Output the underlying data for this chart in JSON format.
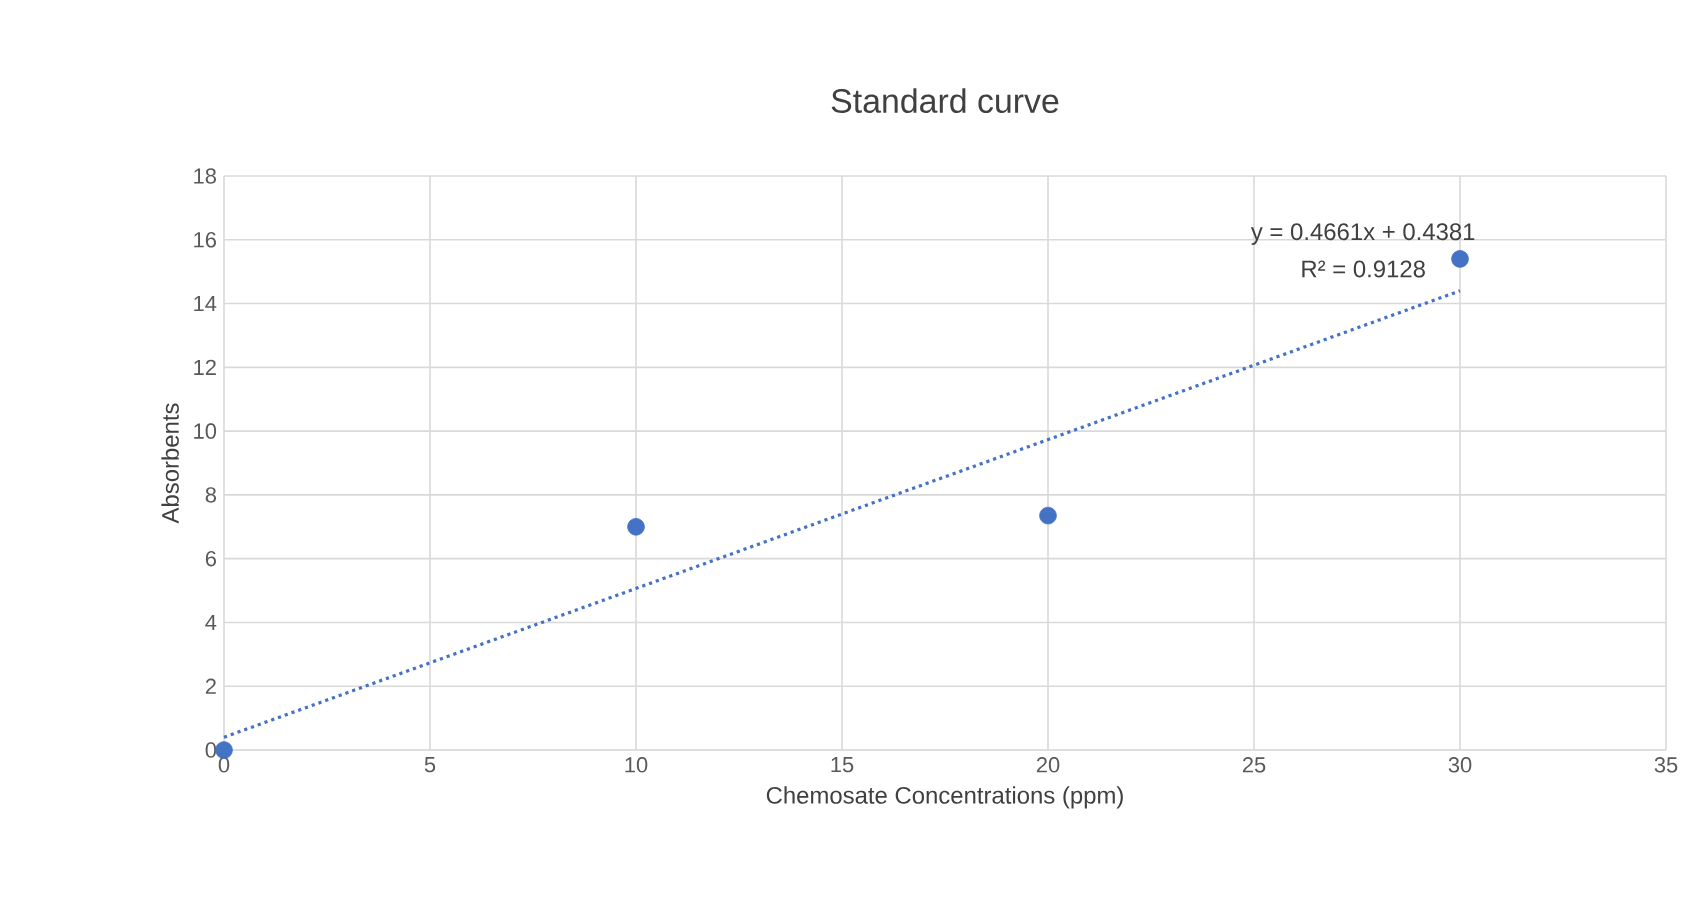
{
  "chart_data": {
    "type": "scatter",
    "title": "Standard curve",
    "xlabel": "Chemosate Concentrations (ppm)",
    "ylabel": "Absorbents",
    "series": [
      {
        "color": "#4472c4",
        "marker": "circle",
        "x": [
          0,
          10,
          20,
          30
        ],
        "values": [
          0,
          7.0,
          7.35,
          15.4
        ]
      },
      {
        "type": "line",
        "color": "#4472c4",
        "line_style": "dotted",
        "marker": "none",
        "x": [
          0,
          30
        ],
        "values": [
          0.4,
          14.4
        ]
      }
    ],
    "annotations": [
      "y = 0.4661x + 0.4381",
      "R² = 0.9128"
    ],
    "xlim": [
      0,
      35
    ],
    "xticks": [
      0,
      5,
      10,
      15,
      20,
      25,
      30,
      35
    ],
    "ylim": [
      0,
      18
    ],
    "yticks": [
      0,
      2,
      4,
      6,
      8,
      10,
      12,
      14,
      16,
      18
    ],
    "grid": true
  }
}
